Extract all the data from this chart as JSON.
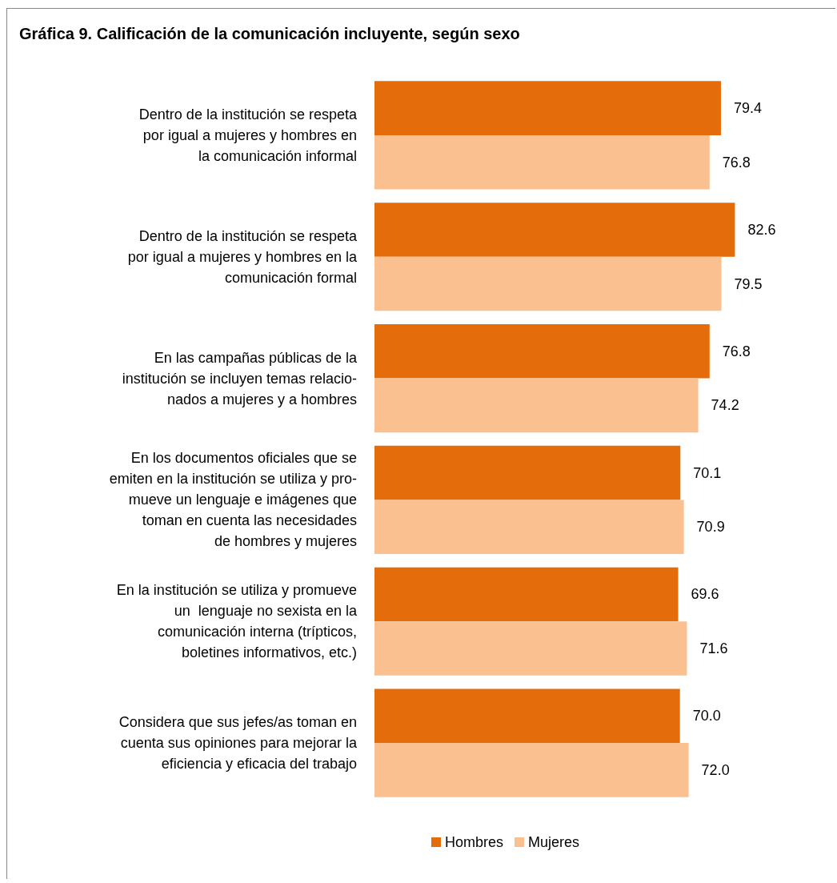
{
  "chart_data": {
    "type": "bar",
    "orientation": "horizontal",
    "title": "Gráfica 9. Calificación de la comunicación incluyente, según sexo",
    "categories": [
      "Dentro de la institución se respeta\npor igual a mujeres y hombres en\nla comunicación informal",
      "Dentro de la institución se respeta\npor igual a mujeres y hombres en la\ncomunicación formal",
      "En las campañas públicas de la\ninstitución se incluyen temas relacio-\nnados a mujeres y a hombres",
      "En los documentos oficiales que se\nemiten en la institución se utiliza y pro-\nmueve un lenguaje e imágenes que\ntoman en cuenta las necesidades\nde hombres y mujeres",
      "En la institución se utiliza y promueve\nun  lenguaje no sexista en la\ncomunicación interna (trípticos,\nboletines informativos, etc.)",
      "Considera que sus jefes/as toman en\ncuenta sus opiniones para mejorar la\neficiencia y eficacia del trabajo"
    ],
    "series": [
      {
        "name": "Hombres",
        "color": "#e46c0a",
        "values": [
          79.4,
          82.6,
          76.8,
          70.1,
          69.6,
          70.0
        ],
        "value_labels": [
          "79.4",
          "82.6",
          "76.8",
          "70.1",
          "69.6",
          "70.0"
        ]
      },
      {
        "name": "Mujeres",
        "color": "#fac090",
        "values": [
          76.8,
          79.5,
          74.2,
          70.9,
          71.6,
          72.0
        ],
        "value_labels": [
          "76.8",
          "79.5",
          "74.2",
          "70.9",
          "71.6",
          "72.0"
        ]
      }
    ],
    "legend": "bottom"
  }
}
